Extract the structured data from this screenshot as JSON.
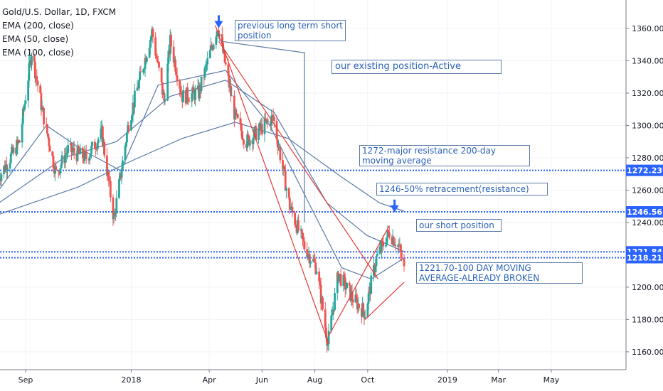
{
  "legend": {
    "title": "Gold/U.S. Dollar, 1D, FXCM",
    "ema200": "EMA (200, close)",
    "ema50": "EMA (50, close)",
    "ema100": "EMA (100, close)"
  },
  "annotations": {
    "prev_short": "previous long term short\nposition",
    "existing": "our existing position-Active",
    "resistance_1272": "1272-major resistance 200-day\nmoving average",
    "retracement_1246": "1246-50% retracement(resistance)",
    "short_position": "our short position",
    "ma_1221": "1221.70-100 DAY MOVING\nAVERAGE-ALREADY BROKEN"
  },
  "colors": {
    "up": "#26a69a",
    "down": "#ef5350",
    "ema": "#5b7aa8",
    "hline": "#2962ff",
    "trend": "#e53935",
    "badge": "#2962ff"
  },
  "chart_data": {
    "type": "candlestick",
    "title": "Gold/U.S. Dollar, 1D, FXCM",
    "ylim": [
      1150,
      1370
    ],
    "y_ticks": [
      1160,
      1180,
      1200,
      1220,
      1240,
      1260,
      1280,
      1300,
      1320,
      1340,
      1360
    ],
    "x_ticks": [
      "Sep",
      "2018",
      "Apr",
      "Jun",
      "Aug",
      "Oct",
      "2019",
      "Mar",
      "May"
    ],
    "x_tick_dates": [
      "2017-09-01",
      "2018-01-01",
      "2018-04-01",
      "2018-06-01",
      "2018-08-01",
      "2018-10-01",
      "2019-01-01",
      "2019-03-01",
      "2019-05-01"
    ],
    "price_levels": [
      {
        "label": "1272.23",
        "value": 1272.23
      },
      {
        "label": "1246.56",
        "value": 1246.56
      },
      {
        "label": "1221.84",
        "value": 1221.84
      },
      {
        "label": "1218.21",
        "value": 1218.21
      }
    ],
    "close_path": [
      {
        "date": "2017-08-01",
        "close": 1268
      },
      {
        "date": "2017-08-25",
        "close": 1290
      },
      {
        "date": "2017-09-08",
        "close": 1346
      },
      {
        "date": "2017-09-20",
        "close": 1310
      },
      {
        "date": "2017-10-06",
        "close": 1270
      },
      {
        "date": "2017-10-20",
        "close": 1285
      },
      {
        "date": "2017-11-10",
        "close": 1280
      },
      {
        "date": "2017-11-28",
        "close": 1295
      },
      {
        "date": "2017-12-12",
        "close": 1242
      },
      {
        "date": "2017-12-29",
        "close": 1302
      },
      {
        "date": "2018-01-25",
        "close": 1358
      },
      {
        "date": "2018-02-08",
        "close": 1315
      },
      {
        "date": "2018-02-15",
        "close": 1352
      },
      {
        "date": "2018-03-01",
        "close": 1318
      },
      {
        "date": "2018-03-20",
        "close": 1320
      },
      {
        "date": "2018-04-11",
        "close": 1362
      },
      {
        "date": "2018-05-01",
        "close": 1305
      },
      {
        "date": "2018-05-14",
        "close": 1290
      },
      {
        "date": "2018-06-14",
        "close": 1305
      },
      {
        "date": "2018-07-03",
        "close": 1250
      },
      {
        "date": "2018-07-20",
        "close": 1225
      },
      {
        "date": "2018-08-03",
        "close": 1212
      },
      {
        "date": "2018-08-16",
        "close": 1165
      },
      {
        "date": "2018-08-28",
        "close": 1208
      },
      {
        "date": "2018-09-14",
        "close": 1193
      },
      {
        "date": "2018-09-28",
        "close": 1184
      },
      {
        "date": "2018-10-11",
        "close": 1218
      },
      {
        "date": "2018-10-26",
        "close": 1234
      },
      {
        "date": "2018-11-06",
        "close": 1225
      },
      {
        "date": "2018-11-12",
        "close": 1211
      }
    ],
    "ema200": [
      {
        "date": "2017-08-01",
        "value": 1245
      },
      {
        "date": "2017-11-01",
        "value": 1262
      },
      {
        "date": "2018-01-01",
        "value": 1278
      },
      {
        "date": "2018-03-01",
        "value": 1292
      },
      {
        "date": "2018-05-01",
        "value": 1302
      },
      {
        "date": "2018-07-01",
        "value": 1292
      },
      {
        "date": "2018-09-01",
        "value": 1268
      },
      {
        "date": "2018-10-15",
        "value": 1252
      },
      {
        "date": "2018-11-12",
        "value": 1247
      }
    ],
    "ema100": [
      {
        "date": "2017-08-01",
        "value": 1252
      },
      {
        "date": "2017-10-15",
        "value": 1280
      },
      {
        "date": "2017-12-15",
        "value": 1290
      },
      {
        "date": "2018-02-15",
        "value": 1318
      },
      {
        "date": "2018-04-20",
        "value": 1328
      },
      {
        "date": "2018-06-15",
        "value": 1308
      },
      {
        "date": "2018-08-15",
        "value": 1252
      },
      {
        "date": "2018-09-30",
        "value": 1232
      },
      {
        "date": "2018-11-12",
        "value": 1222
      }
    ],
    "ema50": [
      {
        "date": "2017-08-01",
        "value": 1260
      },
      {
        "date": "2017-09-25",
        "value": 1300
      },
      {
        "date": "2017-11-05",
        "value": 1285
      },
      {
        "date": "2017-12-20",
        "value": 1272
      },
      {
        "date": "2018-02-01",
        "value": 1325
      },
      {
        "date": "2018-04-20",
        "value": 1334
      },
      {
        "date": "2018-06-10",
        "value": 1300
      },
      {
        "date": "2018-07-25",
        "value": 1252
      },
      {
        "date": "2018-09-01",
        "value": 1212
      },
      {
        "date": "2018-10-05",
        "value": 1205
      },
      {
        "date": "2018-11-12",
        "value": 1218
      }
    ],
    "trend_lines": [
      {
        "from": {
          "date": "2018-04-08",
          "value": 1362
        },
        "to": {
          "date": "2018-08-17",
          "value": 1165
        }
      },
      {
        "from": {
          "date": "2018-04-12",
          "value": 1352
        },
        "to": {
          "date": "2018-10-13",
          "value": 1205
        }
      },
      {
        "from": {
          "date": "2018-08-17",
          "value": 1170
        },
        "to": {
          "date": "2018-10-26",
          "value": 1238
        }
      },
      {
        "from": {
          "date": "2018-09-28",
          "value": 1180
        },
        "to": {
          "date": "2018-11-12",
          "value": 1203
        }
      }
    ],
    "position_connector": [
      {
        "date": "2018-04-15",
        "value": 1352
      },
      {
        "date": "2018-07-20",
        "value": 1345
      },
      {
        "date": "2018-07-20",
        "value": 1240
      }
    ],
    "arrows": [
      {
        "date": "2018-04-12",
        "value": 1362,
        "label": "previous long term short position"
      },
      {
        "date": "2018-11-01",
        "value": 1248,
        "label": "our short position"
      }
    ]
  }
}
